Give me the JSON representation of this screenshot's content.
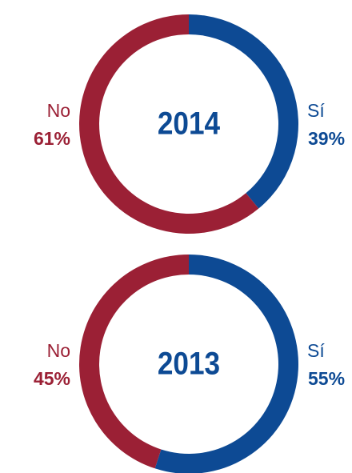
{
  "chart_data": [
    {
      "type": "pie",
      "title": "2014",
      "categories": [
        "Sí",
        "No"
      ],
      "values": [
        39,
        61
      ],
      "value_labels": [
        "39%",
        "61%"
      ],
      "colors": [
        "#0d4a94",
        "#9b2035"
      ],
      "donut": true
    },
    {
      "type": "pie",
      "title": "2013",
      "categories": [
        "Sí",
        "No"
      ],
      "values": [
        55,
        45
      ],
      "value_labels": [
        "55%",
        "45%"
      ],
      "colors": [
        "#0d4a94",
        "#9b2035"
      ],
      "donut": true
    }
  ]
}
